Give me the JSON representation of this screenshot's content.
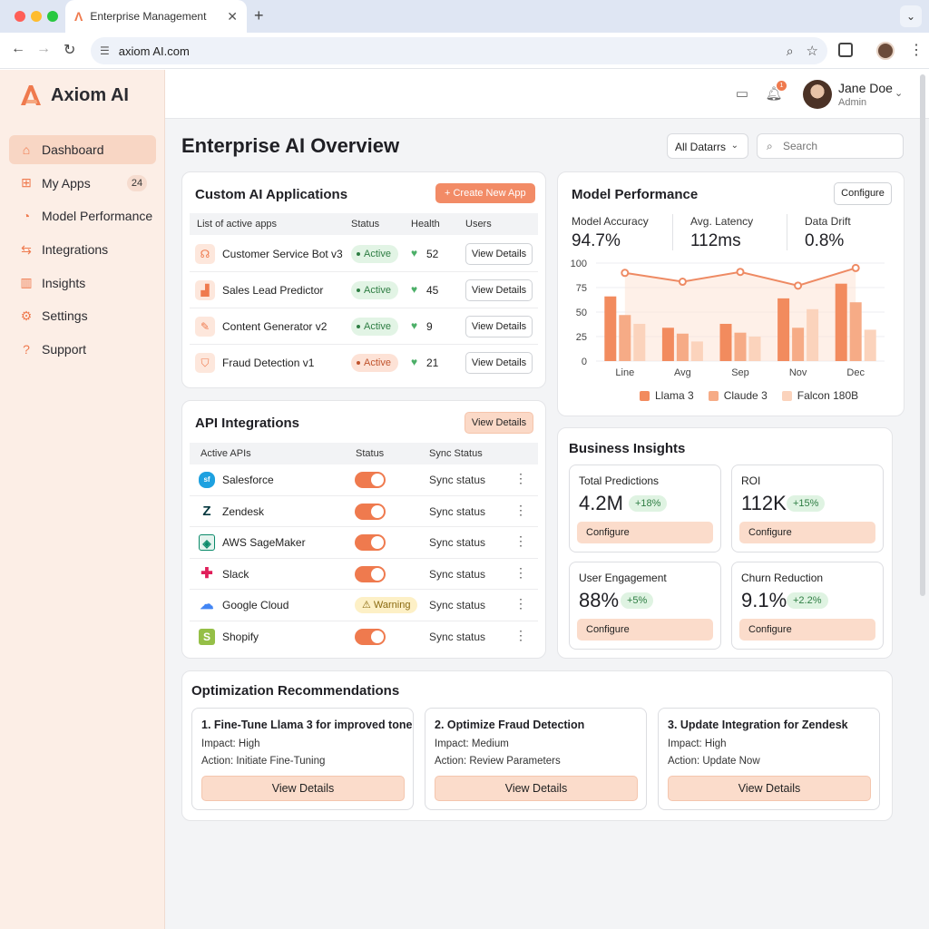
{
  "browser": {
    "tab_title": "Enterprise Management",
    "url": "axiom AI.com",
    "colors": {
      "close": "#ff5f57",
      "minimize": "#febc2e",
      "maximize": "#28c840"
    }
  },
  "brand": {
    "name": "Axiom AI",
    "accent": "#ef7a4e"
  },
  "sidebar": {
    "items": [
      {
        "label": "Dashboard",
        "icon": "home-icon"
      },
      {
        "label": "My Apps",
        "icon": "grid-icon",
        "badge": "24"
      },
      {
        "label": "Model Performance",
        "icon": "pie-chart-icon"
      },
      {
        "label": "Integrations",
        "icon": "arrows-icon"
      },
      {
        "label": "Insights",
        "icon": "bar-chart-icon"
      },
      {
        "label": "Settings",
        "icon": "gear-icon"
      },
      {
        "label": "Support",
        "icon": "help-icon"
      }
    ]
  },
  "user": {
    "name": "Jane Doe",
    "role": "Admin",
    "notifications": "1"
  },
  "page": {
    "title": "Enterprise AI Overview",
    "filter": "All Datarrs",
    "search_placeholder": "Search"
  },
  "apps": {
    "title": "Custom AI Applications",
    "create_label": "Create New App",
    "columns": [
      "List of active apps",
      "Status",
      "Health",
      "Users"
    ],
    "rows": [
      {
        "name": "Customer Service Bot v3",
        "status": "Active",
        "health": "52",
        "action": "View Details",
        "icon": "headset-icon"
      },
      {
        "name": "Sales Lead Predictor",
        "status": "Active",
        "health": "45",
        "action": "View Details",
        "icon": "chart-icon"
      },
      {
        "name": "Content Generator v2",
        "status": "Active",
        "health": "9",
        "action": "View Details",
        "icon": "pencil-icon"
      },
      {
        "name": "Fraud Detection v1",
        "status": "Active",
        "health": "21",
        "action": "View Details",
        "icon": "shield-icon"
      }
    ]
  },
  "api": {
    "title": "API Integrations",
    "view_label": "View Details",
    "columns": [
      "Active APIs",
      "Status",
      "Sync Status"
    ],
    "rows": [
      {
        "name": "Salesforce",
        "status": "on",
        "sync": "Sync status",
        "icon": "salesforce-icon"
      },
      {
        "name": "Zendesk",
        "status": "on",
        "sync": "Sync status",
        "icon": "zendesk-icon"
      },
      {
        "name": "AWS SageMaker",
        "status": "on",
        "sync": "Sync status",
        "icon": "sagemaker-icon"
      },
      {
        "name": "Slack",
        "status": "on",
        "sync": "Sync status",
        "icon": "slack-icon"
      },
      {
        "name": "Google Cloud",
        "status": "Warning",
        "sync": "Sync status",
        "icon": "google-cloud-icon"
      },
      {
        "name": "Shopify",
        "status": "on",
        "sync": "Sync status",
        "icon": "shopify-icon"
      }
    ]
  },
  "model": {
    "title": "Model Performance",
    "configure_label": "Configure",
    "metrics": [
      {
        "label": "Model Accuracy",
        "value": "94.7%"
      },
      {
        "label": "Avg. Latency",
        "value": "112ms"
      },
      {
        "label": "Data Drift",
        "value": "0.8%"
      }
    ]
  },
  "chart_data": {
    "type": "bar",
    "categories": [
      "Line",
      "Avg",
      "Sep",
      "Nov",
      "Dec"
    ],
    "ylim": [
      0,
      100
    ],
    "yticks": [
      "0",
      "25",
      "50",
      "75",
      "100"
    ],
    "series": [
      {
        "name": "Llama 3",
        "values": [
          66,
          34,
          38,
          64,
          79
        ],
        "color": "#f28b5e"
      },
      {
        "name": "Claude 3",
        "values": [
          47,
          28,
          29,
          34,
          60
        ],
        "color": "#f6ab86"
      },
      {
        "name": "Falcon 180B",
        "values": [
          38,
          20,
          25,
          53,
          32
        ],
        "color": "#fbd3bc"
      }
    ],
    "line_values": [
      90,
      81,
      91,
      77,
      95
    ],
    "line_color": "#ee8a63",
    "legend": "bottom"
  },
  "insights": {
    "title": "Business Insights",
    "cards": [
      {
        "label": "Total Predictions",
        "value": "4.2M",
        "delta": "+18%",
        "action": "Configure"
      },
      {
        "label": "ROI",
        "value": "112K",
        "delta": "+15%",
        "action": "Configure"
      },
      {
        "label": "User Engagement",
        "value": "88%",
        "delta": "+5%",
        "action": "Configure"
      },
      {
        "label": "Churn Reduction",
        "value": "9.1%",
        "delta": "+2.2%",
        "action": "Configure"
      }
    ]
  },
  "recommendations": {
    "title": "Optimization Recommendations",
    "cards": [
      {
        "title": "1. Fine-Tune Llama 3 for improved tone",
        "impact": "Impact: High",
        "action": "Action: Initiate Fine-Tuning",
        "button": "View Details"
      },
      {
        "title": "2. Optimize Fraud Detection",
        "impact": "Impact: Medium",
        "action": "Action: Review Parameters",
        "button": "View Details"
      },
      {
        "title": "3. Update Integration for Zendesk",
        "impact": "Impact: High",
        "action": "Action: Update Now",
        "button": "View Details"
      }
    ]
  }
}
